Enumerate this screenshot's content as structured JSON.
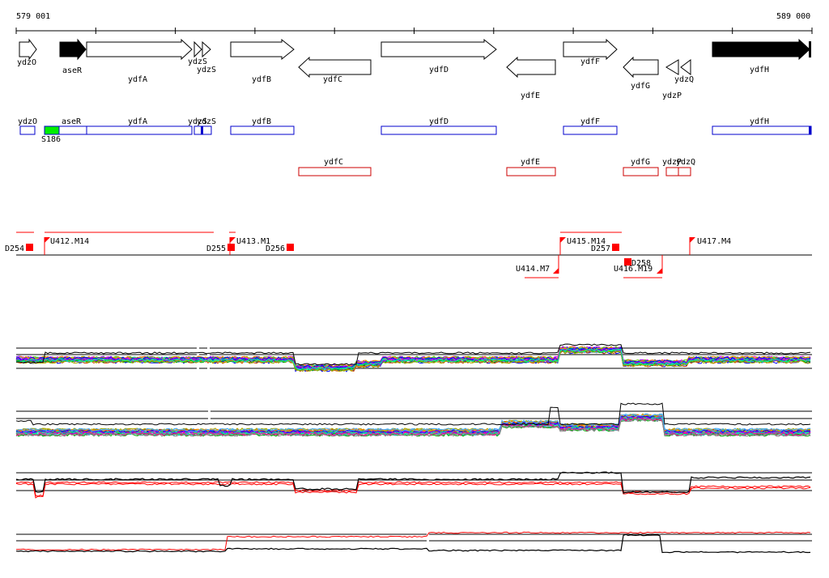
{
  "coordinates": {
    "start": "579 001",
    "end": "589 000"
  },
  "genes": [
    {
      "name": "ydzO",
      "strand": "+",
      "filled": false
    },
    {
      "name": "aseR",
      "strand": "+",
      "filled": true
    },
    {
      "name": "ydfA",
      "strand": "+",
      "filled": false
    },
    {
      "name": "ydzS",
      "strand": "+",
      "filled": false
    },
    {
      "name": "ydzS",
      "strand": "+",
      "filled": false
    },
    {
      "name": "ydfB",
      "strand": "+",
      "filled": false
    },
    {
      "name": "ydfC",
      "strand": "-",
      "filled": false
    },
    {
      "name": "ydfD",
      "strand": "+",
      "filled": false
    },
    {
      "name": "ydfE",
      "strand": "-",
      "filled": false
    },
    {
      "name": "ydfF",
      "strand": "+",
      "filled": false
    },
    {
      "name": "ydfG",
      "strand": "-",
      "filled": false
    },
    {
      "name": "ydzP",
      "strand": "-",
      "filled": false
    },
    {
      "name": "ydzQ",
      "strand": "-",
      "filled": false
    },
    {
      "name": "ydfH",
      "strand": "+",
      "filled": true
    }
  ],
  "fwd_boxes": [
    {
      "label": "ydzO"
    },
    {
      "label": "aseR"
    },
    {
      "label": "ydfA"
    },
    {
      "label": "ydzS"
    },
    {
      "label": "ydzS"
    },
    {
      "label": "ydfB"
    },
    {
      "label": "ydfD"
    },
    {
      "label": "ydfF"
    },
    {
      "label": "ydfH"
    }
  ],
  "fwd_feature": {
    "label": "S186",
    "color": "#00ee00"
  },
  "rev_boxes": [
    {
      "label": "ydfC"
    },
    {
      "label": "ydfE"
    },
    {
      "label": "ydfG"
    },
    {
      "label": "ydzP"
    },
    {
      "label": "ydzQ"
    }
  ],
  "upshifts": [
    "U412.M14",
    "U413.M1",
    "U414.M7",
    "U415.M14",
    "U416.M19",
    "U417.M4"
  ],
  "downshifts": [
    "D254",
    "D255",
    "D256",
    "D257",
    "D258"
  ],
  "colors": {
    "gene_box": "#0000cc",
    "rev_box": "#cc0000",
    "marker": "#ff0000"
  }
}
